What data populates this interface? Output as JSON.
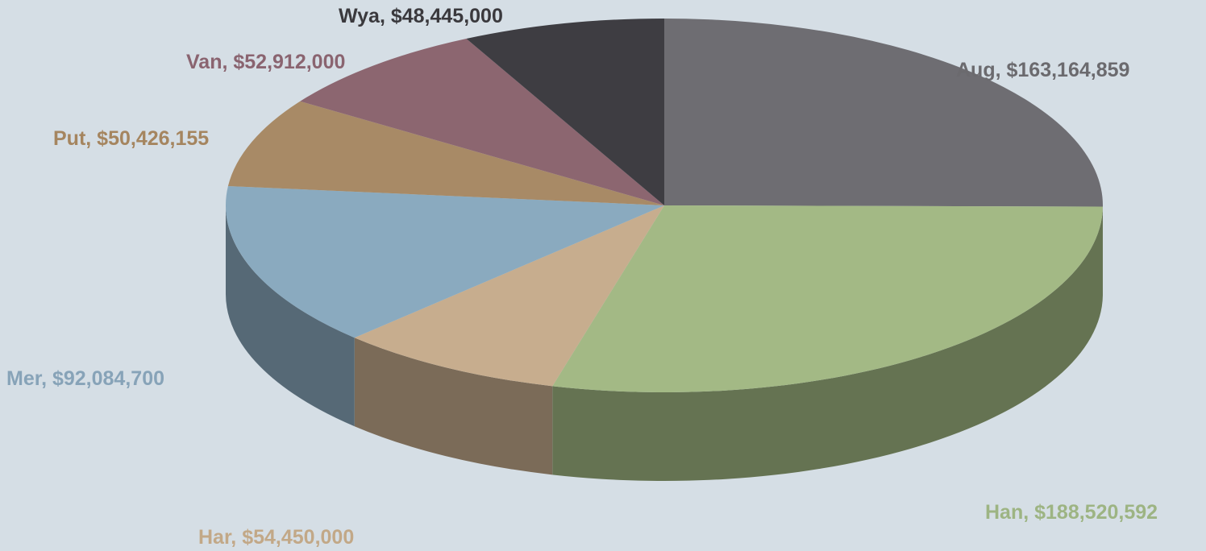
{
  "chart_data": {
    "type": "pie",
    "title": "",
    "slices": [
      {
        "name": "Aug",
        "value": 163164859,
        "label": "Aug, $163,164,859",
        "color": "#6e6d72"
      },
      {
        "name": "Han",
        "value": 188520592,
        "label": "Han, $188,520,592",
        "color": "#a3b985"
      },
      {
        "name": "Har",
        "value": 54450000,
        "label": "Har, $54,450,000",
        "color": "#c7ad8e"
      },
      {
        "name": "Mer",
        "value": 92084700,
        "label": "Mer, $92,084,700",
        "color": "#8aaabf"
      },
      {
        "name": "Put",
        "value": 50426155,
        "label": "Put, $50,426,155",
        "color": "#a88a66"
      },
      {
        "name": "Van",
        "value": 52912000,
        "label": "Van, $52,912,000",
        "color": "#8c6670"
      },
      {
        "name": "Wya",
        "value": 48445000,
        "label": "Wya, $48,445,000",
        "color": "#3e3d42"
      }
    ],
    "label_colors": {
      "Aug": "#6b6a6e",
      "Han": "#9db483",
      "Har": "#c2a887",
      "Mer": "#87a3b8",
      "Put": "#a5855f",
      "Van": "#8a6470",
      "Wya": "#3a393d"
    },
    "legend": "none",
    "style": "3d"
  }
}
